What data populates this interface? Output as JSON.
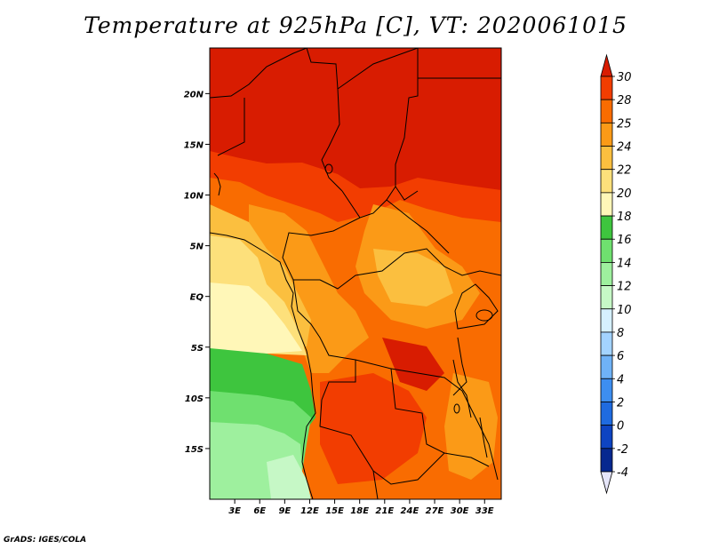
{
  "title": "Temperature at 925hPa [C], VT: 2020061015",
  "credit": "GrADS: IGES/COLA",
  "map": {
    "lon_ticks": [
      "3E",
      "6E",
      "9E",
      "12E",
      "15E",
      "18E",
      "21E",
      "24E",
      "27E",
      "30E",
      "33E"
    ],
    "lat_ticks": [
      "20N",
      "15N",
      "10N",
      "5N",
      "EQ",
      "5S",
      "10S",
      "15S"
    ],
    "lon_range": [
      0,
      35
    ],
    "lat_range": [
      -20,
      24.5
    ],
    "variable": "Temperature at 925hPa",
    "unit": "C"
  },
  "colorbar": {
    "labels": [
      "30",
      "28",
      "25",
      "24",
      "22",
      "20",
      "18",
      "16",
      "14",
      "12",
      "10",
      "8",
      "6",
      "4",
      "2",
      "0",
      "-2",
      "-4"
    ],
    "colors": [
      "#d81c01",
      "#f23d01",
      "#f96c01",
      "#fb9a17",
      "#fbbf3f",
      "#fde07b",
      "#fff7b8",
      "#3ec53e",
      "#6fe06f",
      "#9ef09e",
      "#c6f8c6",
      "#d6f0ff",
      "#a3d3ff",
      "#6fb2f7",
      "#3d8ef0",
      "#1f6be0",
      "#0e44c2",
      "#06288f",
      "#0b0b5f",
      "#e6e6fa"
    ]
  }
}
